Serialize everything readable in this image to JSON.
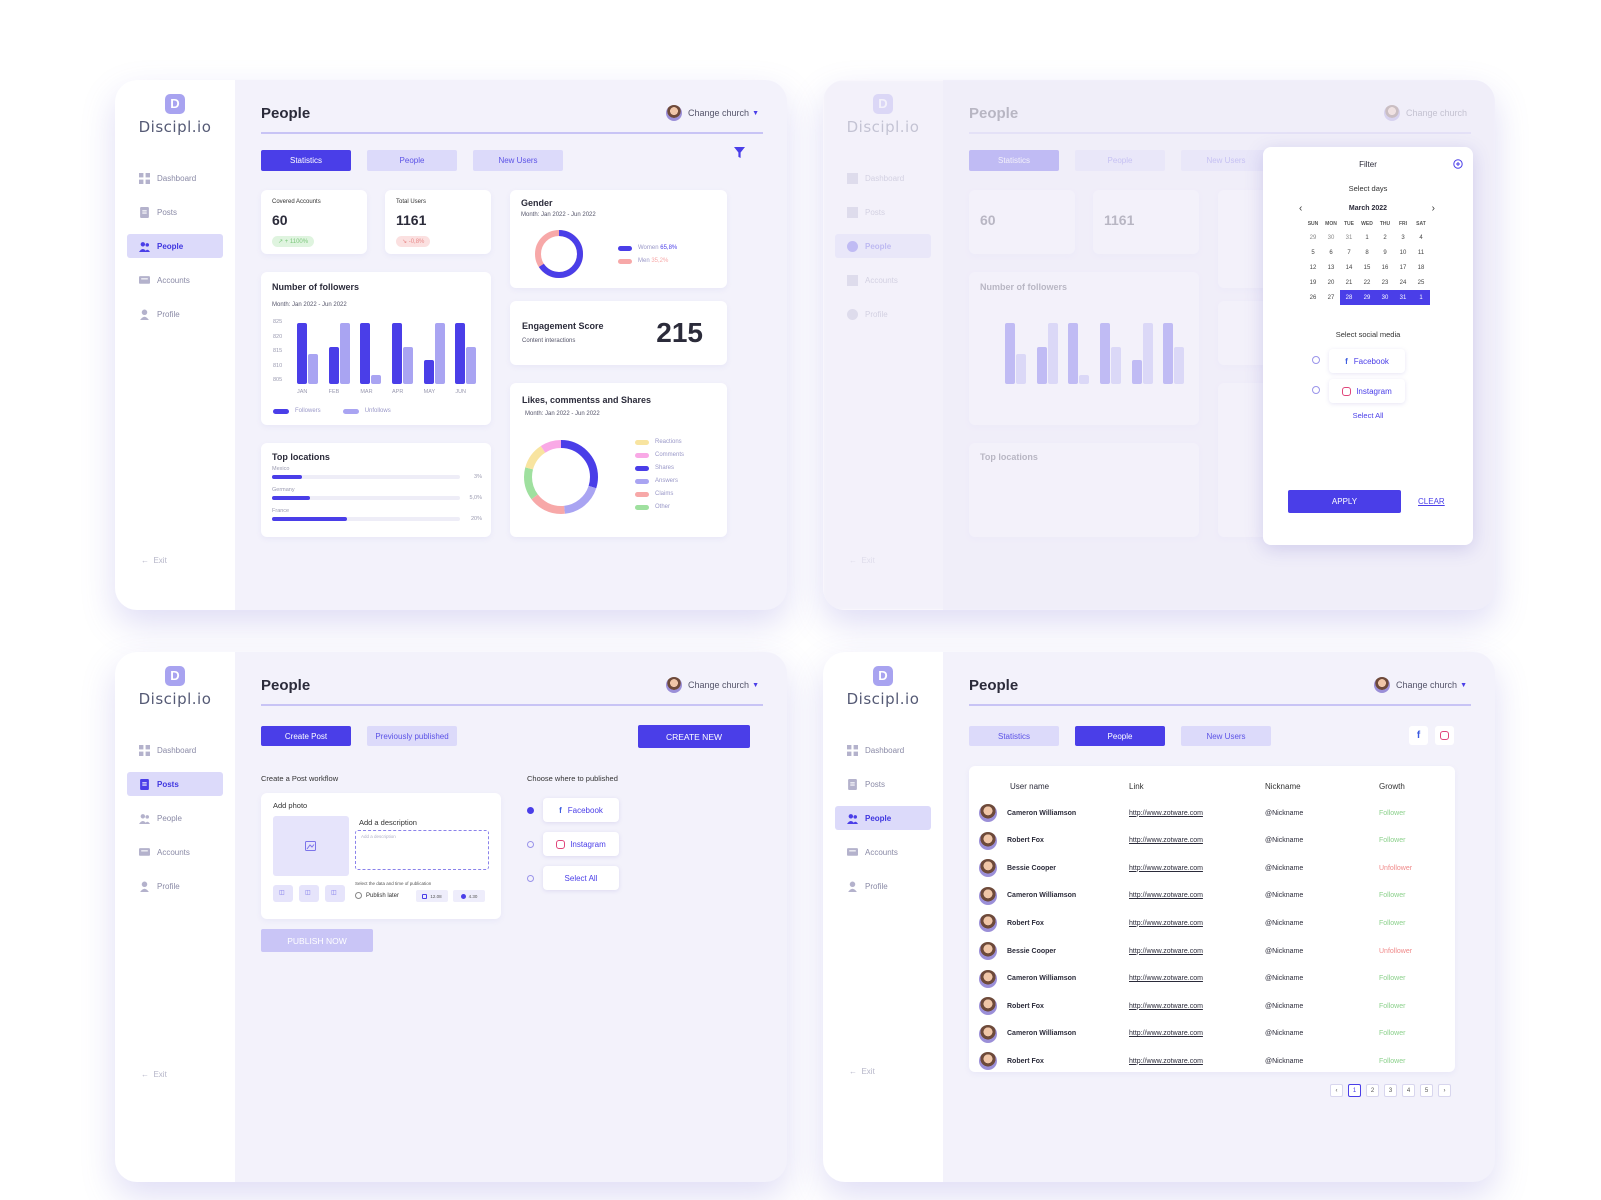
{
  "app": {
    "logo_letter": "D",
    "logo_text": "Discipl.io",
    "page_title": "People",
    "change_church": "Change church",
    "exit": "Exit"
  },
  "nav": {
    "dashboard": "Dashboard",
    "posts": "Posts",
    "people": "People",
    "accounts": "Accounts",
    "profile": "Profile"
  },
  "tabs": {
    "statistics": "Statistics",
    "people": "People",
    "new_users": "New Users"
  },
  "stats": {
    "covered_label": "Covered Accounts",
    "covered_value": "60",
    "covered_change": "↗ + 1100%",
    "total_label": "Total Users",
    "total_value": "1161",
    "total_change": "↘ -0,8%"
  },
  "gender": {
    "title": "Gender",
    "period": "Month: Jan 2022 - Jun 2022",
    "women_label": "Women",
    "women_value": "65,8%",
    "men_label": "Men",
    "men_value": "35,2%"
  },
  "engagement": {
    "title": "Engagement Score",
    "subtitle": "Content interactions",
    "value": "215"
  },
  "followers": {
    "title": "Number of followers",
    "period": "Month: Jan 2022 - Jun 2022",
    "ticks": [
      "825",
      "820",
      "815",
      "810",
      "805"
    ],
    "months": [
      "JAN",
      "FEB",
      "MAR",
      "APR",
      "MAY",
      "JUN"
    ],
    "legend_followers": "Followers",
    "legend_unfollows": "Unfollows"
  },
  "chart_data": {
    "type": "bar",
    "categories": [
      "JAN",
      "FEB",
      "MAR",
      "APR",
      "MAY",
      "JUN"
    ],
    "series": [
      {
        "name": "Followers",
        "values": [
          825,
          817,
          825,
          825,
          813,
          825
        ]
      },
      {
        "name": "Unfollows",
        "values": [
          815,
          825,
          808,
          817,
          825,
          817
        ]
      }
    ],
    "title": "Number of followers",
    "ylim": [
      805,
      826
    ],
    "colors": [
      "#4a3ee8",
      "#a9a4f2"
    ]
  },
  "likes": {
    "title": "Likes, commentss and Shares",
    "period": "Month: Jan 2022 - Jun 2022",
    "legend": [
      "Reactions",
      "Comments",
      "Shares",
      "Answers",
      "Claims",
      "Other"
    ]
  },
  "locations": {
    "title": "Top locations",
    "items": [
      {
        "name": "Mexico",
        "pct": "3%",
        "fill": 0.16
      },
      {
        "name": "Germany",
        "pct": "5,0%",
        "fill": 0.2
      },
      {
        "name": "France",
        "pct": "20%",
        "fill": 0.4
      }
    ]
  },
  "filter": {
    "title": "Filter",
    "select_days": "Select days",
    "month": "March 2022",
    "weekdays": [
      "SUN",
      "MON",
      "TUE",
      "WED",
      "THU",
      "FRI",
      "SAT"
    ],
    "weeks": [
      [
        "29",
        "30",
        "31",
        "1",
        "2",
        "3",
        "4"
      ],
      [
        "5",
        "6",
        "7",
        "8",
        "9",
        "10",
        "11"
      ],
      [
        "12",
        "13",
        "14",
        "15",
        "16",
        "17",
        "18"
      ],
      [
        "19",
        "20",
        "21",
        "22",
        "23",
        "24",
        "25"
      ],
      [
        "26",
        "27",
        "28",
        "29",
        "30",
        "31",
        "1"
      ]
    ],
    "select_social": "Select social media",
    "facebook": "Facebook",
    "instagram": "Instagram",
    "select_all": "Select All",
    "apply": "APPLY",
    "clear": "CLEAR"
  },
  "posts": {
    "create_post": "Create Post",
    "previously_published": "Previously published",
    "create_new": "CREATE NEW",
    "workflow": "Create a Post workflow",
    "add_photo": "Add photo",
    "add_description": "Add a description",
    "description_placeholder": "Add a description",
    "select_date": "Select the data and time of publication",
    "publish_later": "Publish later",
    "date": "12.08",
    "time": "4.30",
    "publish_now": "PUBLISH NOW",
    "choose": "Choose where to published",
    "facebook": "Facebook",
    "instagram": "Instagram",
    "select_all": "Select All"
  },
  "table": {
    "headers": [
      "User name",
      "Link",
      "Nickname",
      "Growth"
    ],
    "rows": [
      {
        "name": "Cameron Williamson",
        "link": "http://www.zotware.com",
        "nick": "@Nickname",
        "growth": "Follower"
      },
      {
        "name": "Robert Fox",
        "link": "http://www.zotware.com",
        "nick": "@Nickname",
        "growth": "Follower"
      },
      {
        "name": "Bessie Cooper",
        "link": "http://www.zotware.com",
        "nick": "@Nickname",
        "growth": "Unfollower"
      },
      {
        "name": "Cameron Williamson",
        "link": "http://www.zotware.com",
        "nick": "@Nickname",
        "growth": "Follower"
      },
      {
        "name": "Robert Fox",
        "link": "http://www.zotware.com",
        "nick": "@Nickname",
        "growth": "Follower"
      },
      {
        "name": "Bessie Cooper",
        "link": "http://www.zotware.com",
        "nick": "@Nickname",
        "growth": "Unfollower"
      },
      {
        "name": "Cameron Williamson",
        "link": "http://www.zotware.com",
        "nick": "@Nickname",
        "growth": "Follower"
      },
      {
        "name": "Robert Fox",
        "link": "http://www.zotware.com",
        "nick": "@Nickname",
        "growth": "Follower"
      },
      {
        "name": "Cameron Williamson",
        "link": "http://www.zotware.com",
        "nick": "@Nickname",
        "growth": "Follower"
      },
      {
        "name": "Robert Fox",
        "link": "http://www.zotware.com",
        "nick": "@Nickname",
        "growth": "Follower"
      }
    ],
    "pages": [
      "1",
      "2",
      "3",
      "4",
      "5"
    ]
  },
  "colors": {
    "accent": "#4a3ee8",
    "accent_light": "#dcdafa",
    "positive": "#8cd18c",
    "negative": "#f08a8a"
  }
}
